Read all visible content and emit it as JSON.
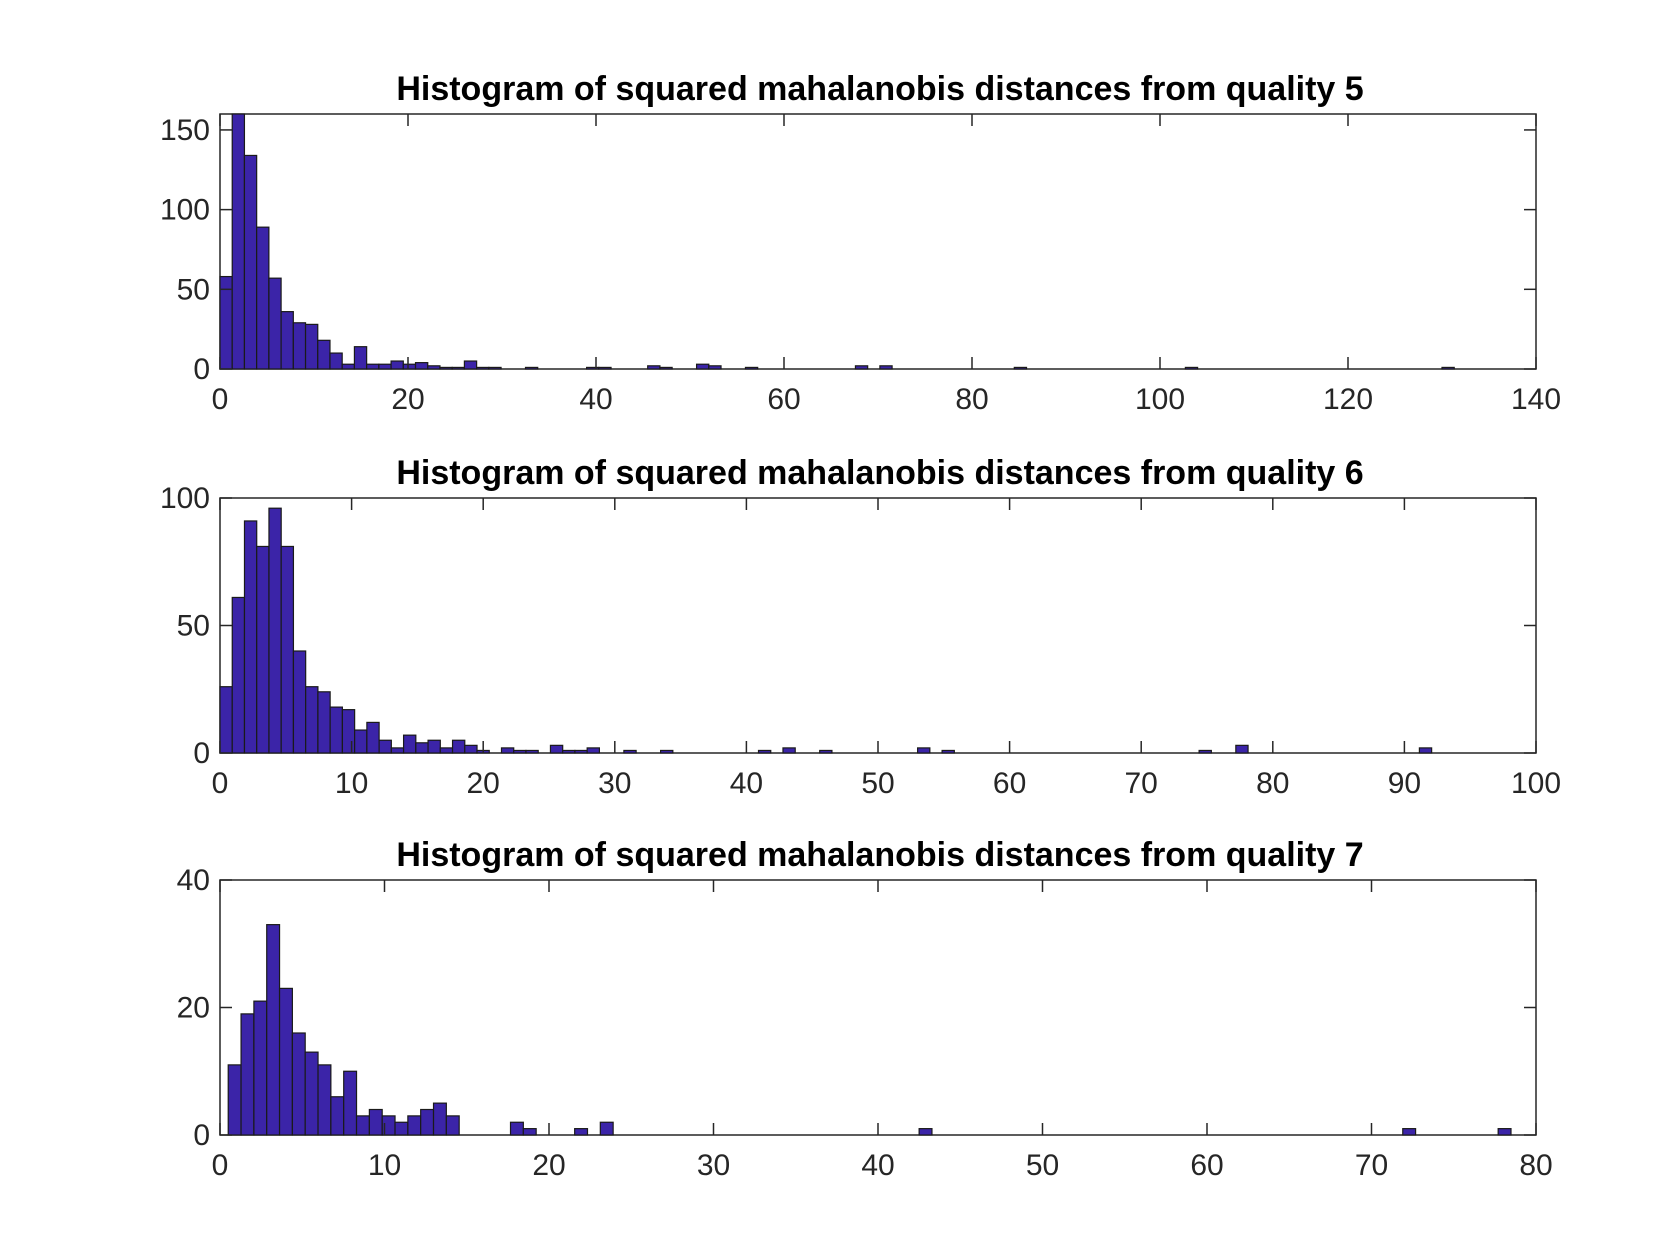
{
  "colors": {
    "bar_fill": "#3b24a8",
    "bar_edge": "#1a1a1a",
    "axis": "#262626",
    "background": "#ffffff"
  },
  "chart_data": [
    {
      "type": "bar",
      "title": "Histogram of squared mahalanobis distances from quality 5",
      "xlabel": "",
      "ylabel": "",
      "xlim": [
        0,
        140
      ],
      "ylim": [
        0,
        160
      ],
      "xticks": [
        0,
        20,
        40,
        60,
        80,
        100,
        120,
        140
      ],
      "yticks": [
        0,
        50,
        100,
        150
      ],
      "grid": false,
      "bin_width": 1.3,
      "bins": [
        [
          0.0,
          58
        ],
        [
          1.3,
          160
        ],
        [
          2.6,
          134
        ],
        [
          3.9,
          89
        ],
        [
          5.2,
          57
        ],
        [
          6.5,
          36
        ],
        [
          7.8,
          29
        ],
        [
          9.1,
          28
        ],
        [
          10.4,
          18
        ],
        [
          11.7,
          10
        ],
        [
          13.0,
          3
        ],
        [
          14.3,
          14
        ],
        [
          15.6,
          3
        ],
        [
          16.9,
          3
        ],
        [
          18.2,
          5
        ],
        [
          19.5,
          3
        ],
        [
          20.8,
          4
        ],
        [
          22.1,
          2
        ],
        [
          23.4,
          1
        ],
        [
          24.7,
          1
        ],
        [
          26.0,
          5
        ],
        [
          27.3,
          1
        ],
        [
          28.6,
          1
        ],
        [
          32.5,
          1
        ],
        [
          39.0,
          1
        ],
        [
          40.3,
          1
        ],
        [
          45.5,
          2
        ],
        [
          46.8,
          1
        ],
        [
          50.7,
          3
        ],
        [
          52.0,
          2
        ],
        [
          55.9,
          1
        ],
        [
          67.6,
          2
        ],
        [
          70.2,
          2
        ],
        [
          84.5,
          1
        ],
        [
          102.7,
          1
        ],
        [
          130.0,
          1
        ]
      ]
    },
    {
      "type": "bar",
      "title": "Histogram of squared mahalanobis distances from quality 6",
      "xlabel": "",
      "ylabel": "",
      "xlim": [
        0,
        100
      ],
      "ylim": [
        0,
        100
      ],
      "xticks": [
        0,
        10,
        20,
        30,
        40,
        50,
        60,
        70,
        80,
        90,
        100
      ],
      "yticks": [
        0,
        50,
        100
      ],
      "grid": false,
      "bin_width": 0.93,
      "bins": [
        [
          0.0,
          26
        ],
        [
          0.93,
          61
        ],
        [
          1.86,
          91
        ],
        [
          2.79,
          81
        ],
        [
          3.72,
          96
        ],
        [
          4.65,
          81
        ],
        [
          5.58,
          40
        ],
        [
          6.51,
          26
        ],
        [
          7.44,
          24
        ],
        [
          8.37,
          18
        ],
        [
          9.3,
          17
        ],
        [
          10.23,
          9
        ],
        [
          11.16,
          12
        ],
        [
          12.09,
          5
        ],
        [
          13.02,
          2
        ],
        [
          13.95,
          7
        ],
        [
          14.88,
          4
        ],
        [
          15.81,
          5
        ],
        [
          16.74,
          2
        ],
        [
          17.67,
          5
        ],
        [
          18.6,
          3
        ],
        [
          19.53,
          1
        ],
        [
          21.39,
          2
        ],
        [
          22.32,
          1
        ],
        [
          23.25,
          1
        ],
        [
          25.11,
          3
        ],
        [
          26.04,
          1
        ],
        [
          26.97,
          1
        ],
        [
          27.9,
          2
        ],
        [
          30.69,
          1
        ],
        [
          33.48,
          1
        ],
        [
          40.92,
          1
        ],
        [
          42.78,
          2
        ],
        [
          45.57,
          1
        ],
        [
          53.01,
          2
        ],
        [
          54.87,
          1
        ],
        [
          74.4,
          1
        ],
        [
          77.19,
          3
        ],
        [
          91.14,
          2
        ]
      ]
    },
    {
      "type": "bar",
      "title": "Histogram of squared mahalanobis distances from quality 7",
      "xlabel": "",
      "ylabel": "",
      "xlim": [
        0,
        80
      ],
      "ylim": [
        0,
        40
      ],
      "xticks": [
        0,
        10,
        20,
        30,
        40,
        50,
        60,
        70,
        80
      ],
      "yticks": [
        0,
        20,
        40
      ],
      "grid": false,
      "bin_width": 0.78,
      "bins": [
        [
          0.5,
          11
        ],
        [
          1.28,
          19
        ],
        [
          2.06,
          21
        ],
        [
          2.84,
          33
        ],
        [
          3.62,
          23
        ],
        [
          4.4,
          16
        ],
        [
          5.18,
          13
        ],
        [
          5.96,
          11
        ],
        [
          6.74,
          6
        ],
        [
          7.52,
          10
        ],
        [
          8.3,
          3
        ],
        [
          9.08,
          4
        ],
        [
          9.86,
          3
        ],
        [
          10.64,
          2
        ],
        [
          11.42,
          3
        ],
        [
          12.2,
          4
        ],
        [
          12.98,
          5
        ],
        [
          13.76,
          3
        ],
        [
          17.66,
          2
        ],
        [
          18.44,
          1
        ],
        [
          21.56,
          1
        ],
        [
          23.12,
          2
        ],
        [
          42.5,
          1
        ],
        [
          71.9,
          1
        ],
        [
          77.7,
          1
        ]
      ]
    }
  ]
}
